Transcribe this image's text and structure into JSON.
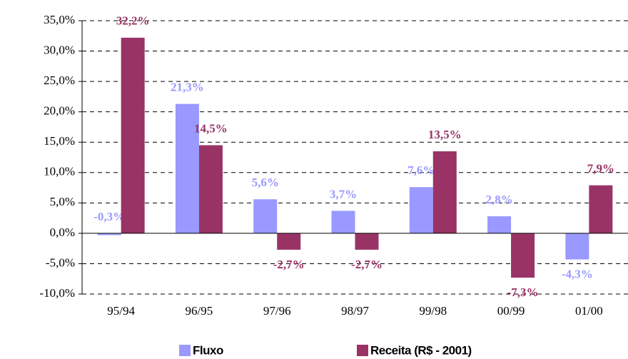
{
  "chart_data": {
    "type": "bar",
    "categories": [
      "95/94",
      "96/95",
      "97/96",
      "98/97",
      "99/98",
      "00/99",
      "01/00"
    ],
    "series": [
      {
        "name": "Fluxo",
        "color": "#9999ff",
        "values": [
          -0.3,
          21.3,
          5.6,
          3.7,
          7.6,
          2.8,
          -4.3
        ],
        "value_labels": [
          "-0,3%",
          "21,3%",
          "5,6%",
          "3,7%",
          "7,6%",
          "2,8%",
          "-4,3%"
        ]
      },
      {
        "name": "Receita (R$ - 2001)",
        "color": "#993366",
        "values": [
          32.2,
          14.5,
          -2.7,
          -2.7,
          13.5,
          -7.3,
          7.9
        ],
        "value_labels": [
          "32,2%",
          "14,5%",
          "-2,7%",
          "-2,7%",
          "13,5%",
          "-7,3%",
          "7,9%"
        ]
      }
    ],
    "ylim": [
      -10,
      35
    ],
    "yticks": [
      {
        "value": -10,
        "label": "-10,0%"
      },
      {
        "value": -5,
        "label": "-5,0%"
      },
      {
        "value": 0,
        "label": "0,0%"
      },
      {
        "value": 5,
        "label": "5,0%"
      },
      {
        "value": 10,
        "label": "10,0%"
      },
      {
        "value": 15,
        "label": "15,0%"
      },
      {
        "value": 20,
        "label": "20,0%"
      },
      {
        "value": 25,
        "label": "25,0%"
      },
      {
        "value": 30,
        "label": "30,0%"
      },
      {
        "value": 35,
        "label": "35,0%"
      }
    ],
    "grid": true,
    "legend": "bottom"
  }
}
